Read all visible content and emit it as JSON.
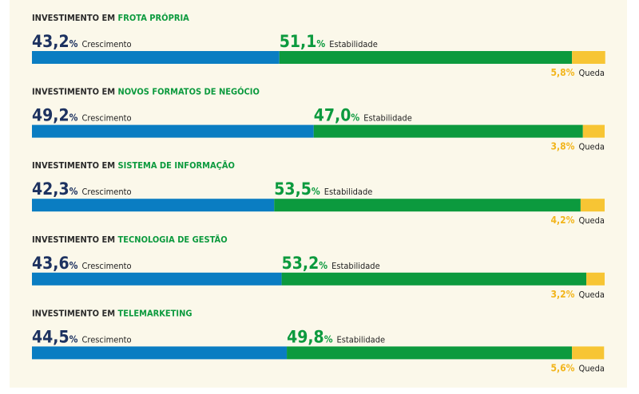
{
  "chart_data": {
    "type": "stacked-hbar",
    "category_prefix": "INVESTIMENTO EM",
    "categories": [
      "FROTA PRÓPRIA",
      "NOVOS FORMATOS DE NEGÓCIO",
      "SISTEMA DE INFORMAÇÃO",
      "TECNOLOGIA DE GESTÃO",
      "TELEMARKETING"
    ],
    "unit": "%",
    "series": [
      {
        "name": "Crescimento",
        "color": "#0a7dc2",
        "label_color": "#1d3260",
        "values": [
          43.2,
          49.2,
          42.3,
          43.6,
          44.5
        ],
        "value_labels": [
          "43,2",
          "49,2",
          "42,3",
          "43,6",
          "44,5"
        ]
      },
      {
        "name": "Estabilidade",
        "color": "#0c9a3e",
        "label_color": "#0c9a3e",
        "values": [
          51.1,
          47.0,
          53.5,
          53.2,
          49.8
        ],
        "value_labels": [
          "51,1",
          "47,0",
          "53,5",
          "53,2",
          "49,8"
        ]
      },
      {
        "name": "Queda",
        "color": "#f7c534",
        "label_color": "#f2b51c",
        "values": [
          5.8,
          3.8,
          4.2,
          3.2,
          5.6
        ],
        "value_labels": [
          "5,8",
          "3,8",
          "4,2",
          "3,2",
          "5,6"
        ]
      }
    ],
    "xlim": [
      0,
      100
    ]
  }
}
